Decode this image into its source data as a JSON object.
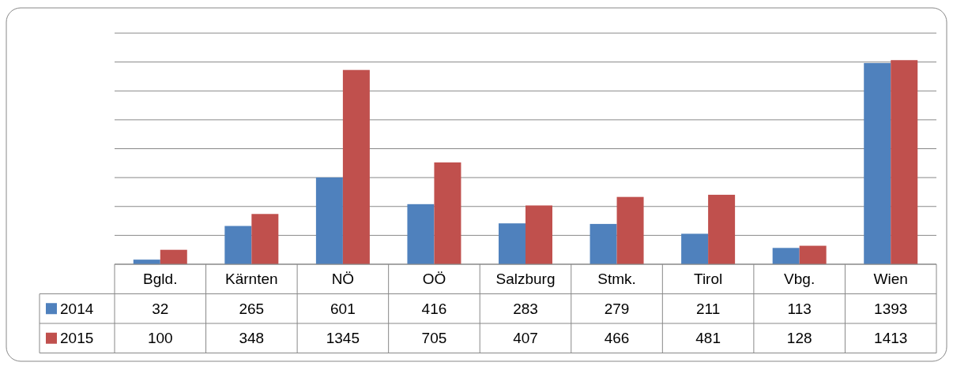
{
  "chart_data": {
    "type": "bar",
    "categories": [
      "Bgld.",
      "Kärnten",
      "NÖ",
      "OÖ",
      "Salzburg",
      "Stmk.",
      "Tirol",
      "Vbg.",
      "Wien"
    ],
    "series": [
      {
        "name": "2014",
        "color": "#4f81bd",
        "values": [
          32,
          265,
          601,
          416,
          283,
          279,
          211,
          113,
          1393
        ]
      },
      {
        "name": "2015",
        "color": "#c0504d",
        "values": [
          100,
          348,
          1345,
          705,
          407,
          466,
          481,
          128,
          1413
        ]
      }
    ],
    "ylim": [
      0,
      1600
    ],
    "yticks": [
      {
        "value": 0,
        "label": null
      },
      {
        "value": 200,
        "label": null
      },
      {
        "value": 400,
        "label": null
      },
      {
        "value": 600,
        "label": null
      },
      {
        "value": 800,
        "label": null
      },
      {
        "value": 1000,
        "label": null
      },
      {
        "value": 1200,
        "label": null
      },
      {
        "value": 1400,
        "label": null
      },
      {
        "value": 1600,
        "label": null
      }
    ],
    "grid": "y",
    "tick_labels": "x",
    "data_labels": true,
    "legend": "bottom left"
  }
}
